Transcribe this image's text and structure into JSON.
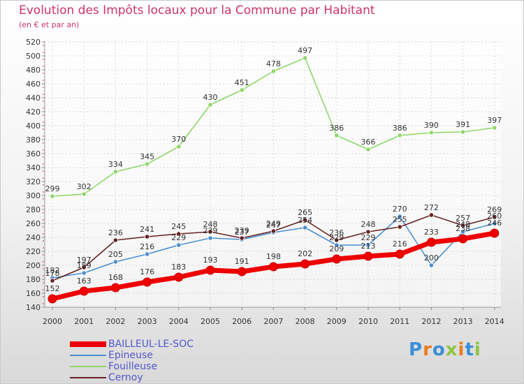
{
  "header": {
    "title": "Evolution des Impôts locaux pour la Commune par Habitant",
    "subtitle": "(en € et par an)"
  },
  "chart_data": {
    "type": "line",
    "title": "Evolution des Impôts locaux pour la Commune par Habitant",
    "subtitle": "(en € et par an)",
    "xlabel": "",
    "ylabel": "",
    "ylim": [
      140,
      520
    ],
    "yticks": [
      140,
      160,
      180,
      200,
      220,
      240,
      260,
      280,
      300,
      320,
      340,
      360,
      380,
      400,
      420,
      440,
      460,
      480,
      500,
      520
    ],
    "grid": true,
    "legend_position": "bottom-left",
    "categories": [
      "2000",
      "2001",
      "2002",
      "2003",
      "2004",
      "2005",
      "2006",
      "2007",
      "2008",
      "2009",
      "2010",
      "2011",
      "2012",
      "2013",
      "2014"
    ],
    "series": [
      {
        "name": "BAILLEUL-LE-SOC",
        "color": "#ee0000",
        "values": [
          152,
          163,
          168,
          176,
          183,
          193,
          191,
          198,
          202,
          209,
          213,
          216,
          233,
          238,
          246
        ]
      },
      {
        "name": "Epineuse",
        "color": "#4a8fd0",
        "values": [
          182,
          189,
          205,
          216,
          229,
          239,
          237,
          247,
          254,
          229,
          229,
          270,
          200,
          248,
          260
        ]
      },
      {
        "name": "Fouilleuse",
        "color": "#8fd66a",
        "values": [
          299,
          302,
          334,
          345,
          370,
          430,
          451,
          478,
          497,
          386,
          366,
          386,
          390,
          391,
          397
        ]
      },
      {
        "name": "Cernoy",
        "color": "#662222",
        "values": [
          178,
          197,
          236,
          241,
          245,
          248,
          239,
          249,
          265,
          236,
          248,
          255,
          272,
          257,
          269
        ]
      }
    ]
  },
  "legend": {
    "items": [
      {
        "label": "BAILLEUL-LE-SOC",
        "color": "#ee0000"
      },
      {
        "label": "Epineuse",
        "color": "#4a8fd0"
      },
      {
        "label": "Fouilleuse",
        "color": "#8fd66a"
      },
      {
        "label": "Cernoy",
        "color": "#662222"
      }
    ]
  },
  "logo": {
    "text": "Proxiti",
    "letter_colors": [
      "#3a8fd6",
      "#e87d1e",
      "#3a8fd6",
      "#8dc63f",
      "#e87d1e",
      "#3a8fd6",
      "#8dc63f"
    ]
  }
}
